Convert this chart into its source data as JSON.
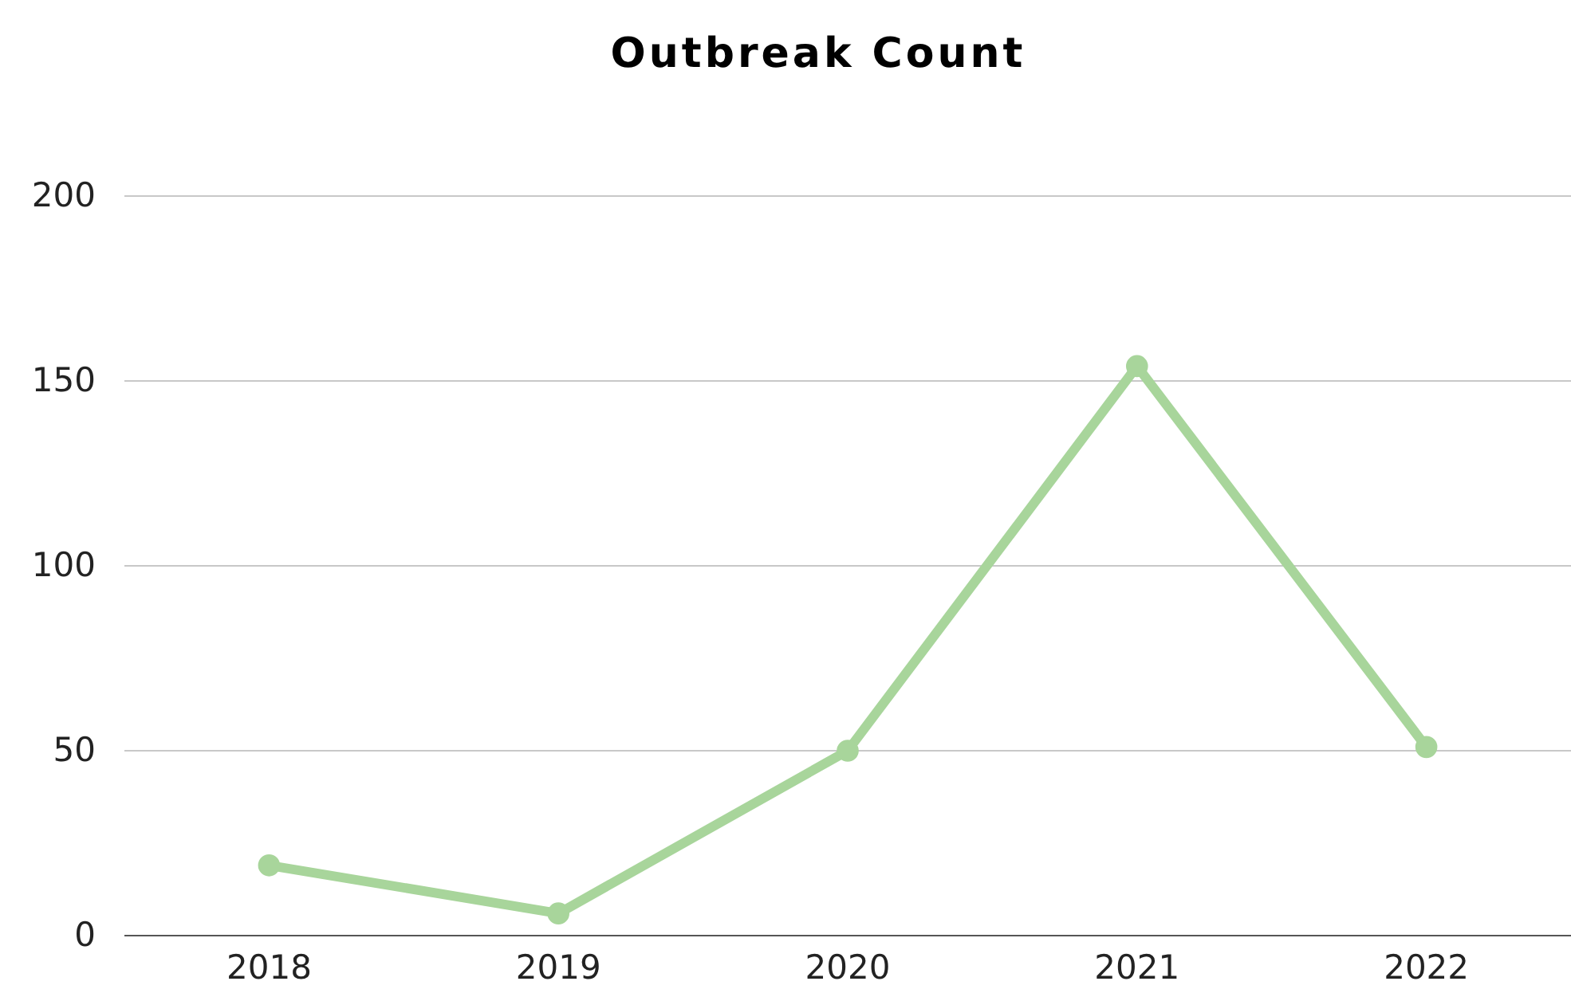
{
  "chart_data": {
    "type": "line",
    "title": "Outbreak Count",
    "categories": [
      "2018",
      "2019",
      "2020",
      "2021",
      "2022"
    ],
    "series": [
      {
        "color": "#a8d59b",
        "values": [
          19,
          6,
          50,
          154,
          51
        ]
      }
    ],
    "ylim": [
      0,
      200
    ],
    "yticks": [
      0,
      50,
      100,
      150,
      200
    ],
    "grid": "y",
    "marker": "circle",
    "line_style": "solid"
  }
}
